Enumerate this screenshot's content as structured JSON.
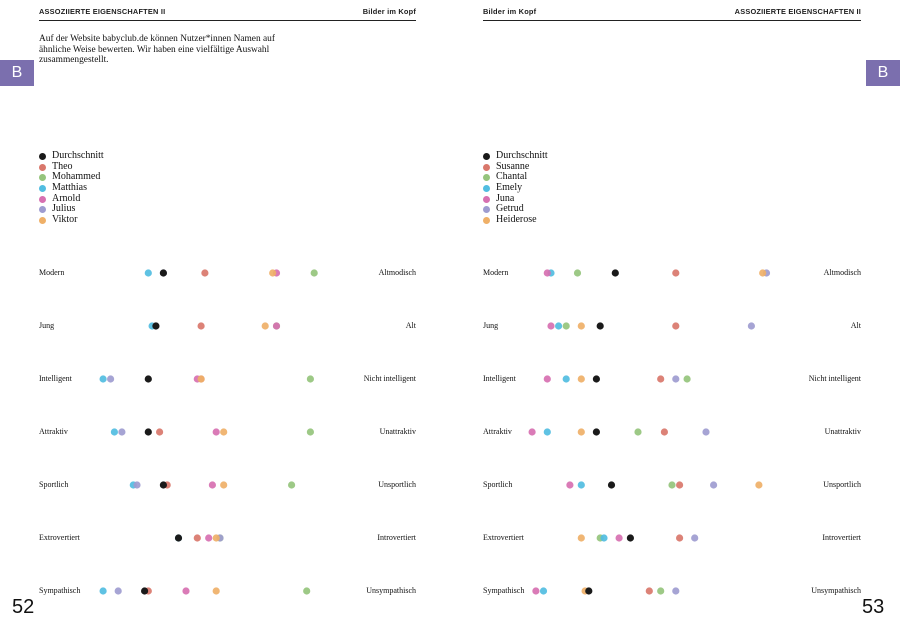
{
  "left_page": {
    "header_left": "ASSOZIIERTE EIGENSCHAFTEN II",
    "header_right": "Bilder im Kopf",
    "intro": "Auf der Website babyclub.de können Nutzer*innen Namen auf ähnliche Weise bewerten. Wir haben eine vielfältige Auswahl zusammengestellt.",
    "tab_letter": "B",
    "page_number": "52"
  },
  "right_page": {
    "header_left": "Bilder im Kopf",
    "header_right": "ASSOZIIERTE EIGENSCHAFTEN II",
    "tab_letter": "B",
    "page_number": "53"
  },
  "chart_data": [
    {
      "type": "scatter",
      "series": [
        {
          "name": "Durchschnitt",
          "color": "#1a1a1a",
          "values": [
            0.33,
            0.31,
            0.29,
            0.29,
            0.33,
            0.37,
            0.28
          ]
        },
        {
          "name": "Theo",
          "color": "#d9776b",
          "values": [
            0.44,
            0.43,
            0.43,
            0.32,
            0.34,
            0.42,
            0.29
          ]
        },
        {
          "name": "Mohammed",
          "color": "#95c47c",
          "values": [
            0.73,
            0.63,
            0.72,
            0.72,
            0.67,
            0.48,
            0.71
          ]
        },
        {
          "name": "Matthias",
          "color": "#51bde1",
          "values": [
            0.29,
            0.3,
            0.17,
            0.2,
            0.25,
            0.37,
            0.17
          ]
        },
        {
          "name": "Arnold",
          "color": "#d770b1",
          "values": [
            0.63,
            0.63,
            0.42,
            0.47,
            0.46,
            0.45,
            0.39
          ]
        },
        {
          "name": "Julius",
          "color": "#9e9cd0",
          "values": [
            0.33,
            0.31,
            0.19,
            0.22,
            0.26,
            0.48,
            0.21
          ]
        },
        {
          "name": "Viktor",
          "color": "#efb068",
          "values": [
            0.62,
            0.6,
            0.43,
            0.49,
            0.49,
            0.47,
            0.47
          ]
        }
      ]
    },
    {
      "type": "scatter",
      "series": [
        {
          "name": "Durchschnitt",
          "color": "#1a1a1a",
          "values": [
            0.35,
            0.31,
            0.3,
            0.3,
            0.34,
            0.39,
            0.28
          ]
        },
        {
          "name": "Susanne",
          "color": "#d9776b",
          "values": [
            0.51,
            0.51,
            0.47,
            0.48,
            0.52,
            0.52,
            0.44
          ]
        },
        {
          "name": "Chantal",
          "color": "#95c47c",
          "values": [
            0.25,
            0.22,
            0.54,
            0.41,
            0.5,
            0.31,
            0.47
          ]
        },
        {
          "name": "Emely",
          "color": "#51bde1",
          "values": [
            0.18,
            0.2,
            0.22,
            0.17,
            0.26,
            0.32,
            0.16
          ]
        },
        {
          "name": "Juna",
          "color": "#d770b1",
          "values": [
            0.17,
            0.18,
            0.17,
            0.13,
            0.23,
            0.36,
            0.14
          ]
        },
        {
          "name": "Getrud",
          "color": "#9e9cd0",
          "values": [
            0.75,
            0.71,
            0.51,
            0.59,
            0.61,
            0.56,
            0.51
          ]
        },
        {
          "name": "Heiderose",
          "color": "#efb068",
          "values": [
            0.74,
            0.26,
            0.26,
            0.26,
            0.73,
            0.26,
            0.27
          ]
        }
      ]
    }
  ],
  "scales": [
    {
      "left": "Modern",
      "right": "Altmodisch"
    },
    {
      "left": "Jung",
      "right": "Alt"
    },
    {
      "left": "Intelligent",
      "right": "Nicht intelligent"
    },
    {
      "left": "Attraktiv",
      "right": "Unattraktiv"
    },
    {
      "left": "Sportlich",
      "right": "Unsportlich"
    },
    {
      "left": "Extrovertiert",
      "right": "Introvertiert"
    },
    {
      "left": "Sympathisch",
      "right": "Unsympathisch"
    }
  ]
}
